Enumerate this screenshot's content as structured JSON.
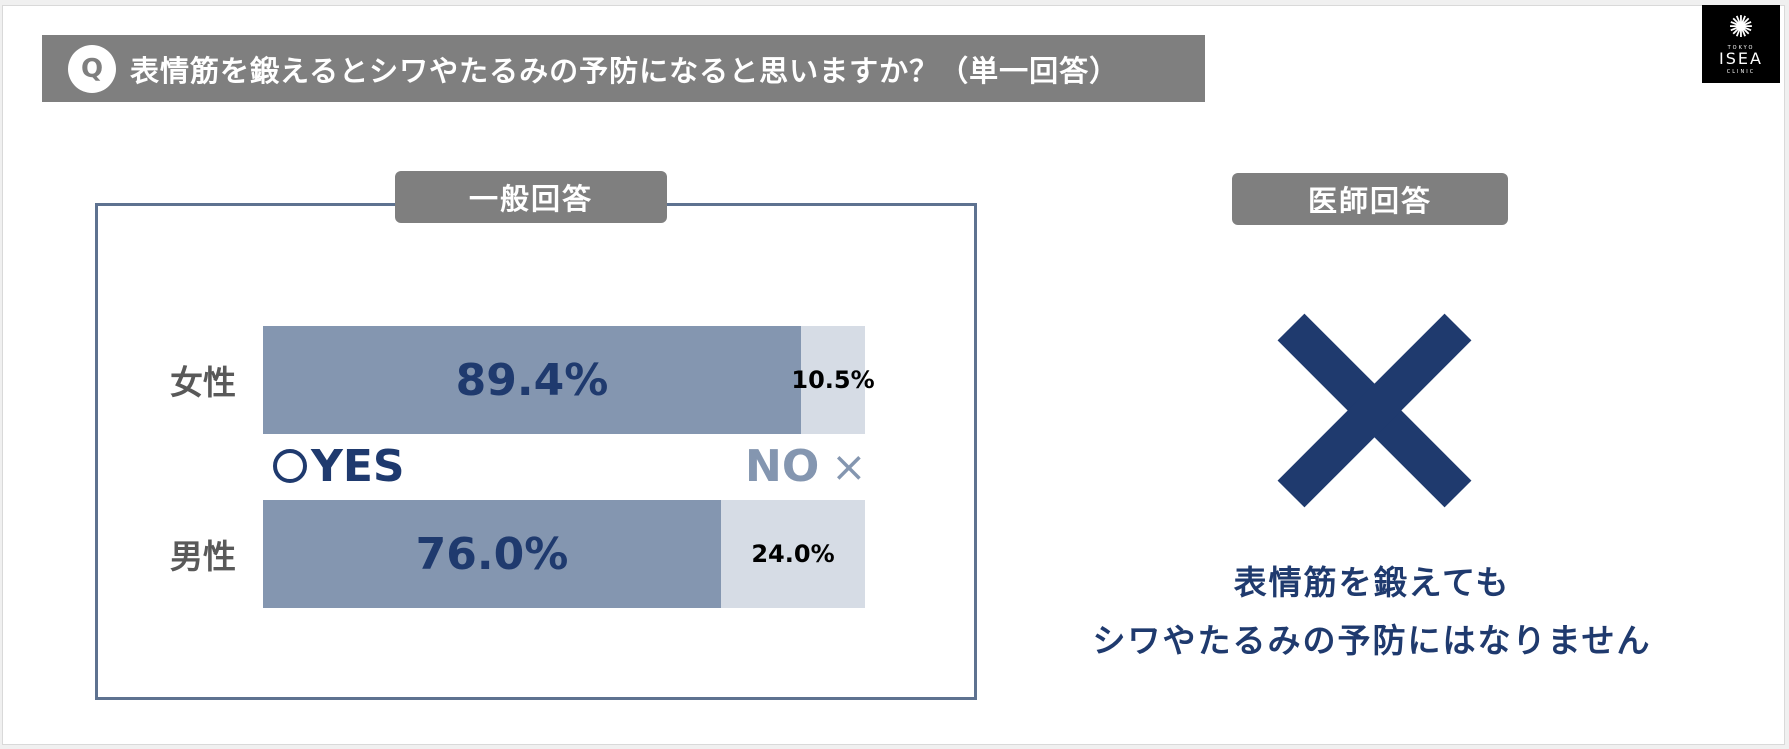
{
  "question": {
    "marker": "Q",
    "text": "表情筋を鍛えるとシワやたるみの予防になると思いますか？（単一回答）"
  },
  "logo": {
    "icon": "sunburst-icon",
    "small_text": "TOKYO",
    "name": "ISEA",
    "sub_text": "CLINIC"
  },
  "general": {
    "tag": "一般回答",
    "legend_yes": "YES",
    "legend_no": "NO",
    "legend_yes_icon": "circle-icon",
    "legend_no_icon": "cross-icon"
  },
  "doctor": {
    "tag": "医師回答",
    "answer_icon": "cross-icon",
    "line1": "表情筋を鍛えても",
    "line2": "シワやたるみの予防にはなりません"
  },
  "colors": {
    "header_bg": "#7f7f7f",
    "yes_bar": "#8496b0",
    "no_bar": "#d6dce5",
    "navy": "#1f3a6e",
    "box_border": "#5e7290"
  },
  "chart_data": {
    "type": "bar",
    "orientation": "horizontal",
    "stacked": true,
    "categories": [
      "女性",
      "男性"
    ],
    "series": [
      {
        "name": "YES",
        "values": [
          89.4,
          76.0
        ],
        "labels": [
          "89.4%",
          "76.0%"
        ]
      },
      {
        "name": "NO",
        "values": [
          10.5,
          24.0
        ],
        "labels": [
          "10.5%",
          "24.0%"
        ]
      }
    ],
    "xlim": [
      0,
      100
    ]
  }
}
